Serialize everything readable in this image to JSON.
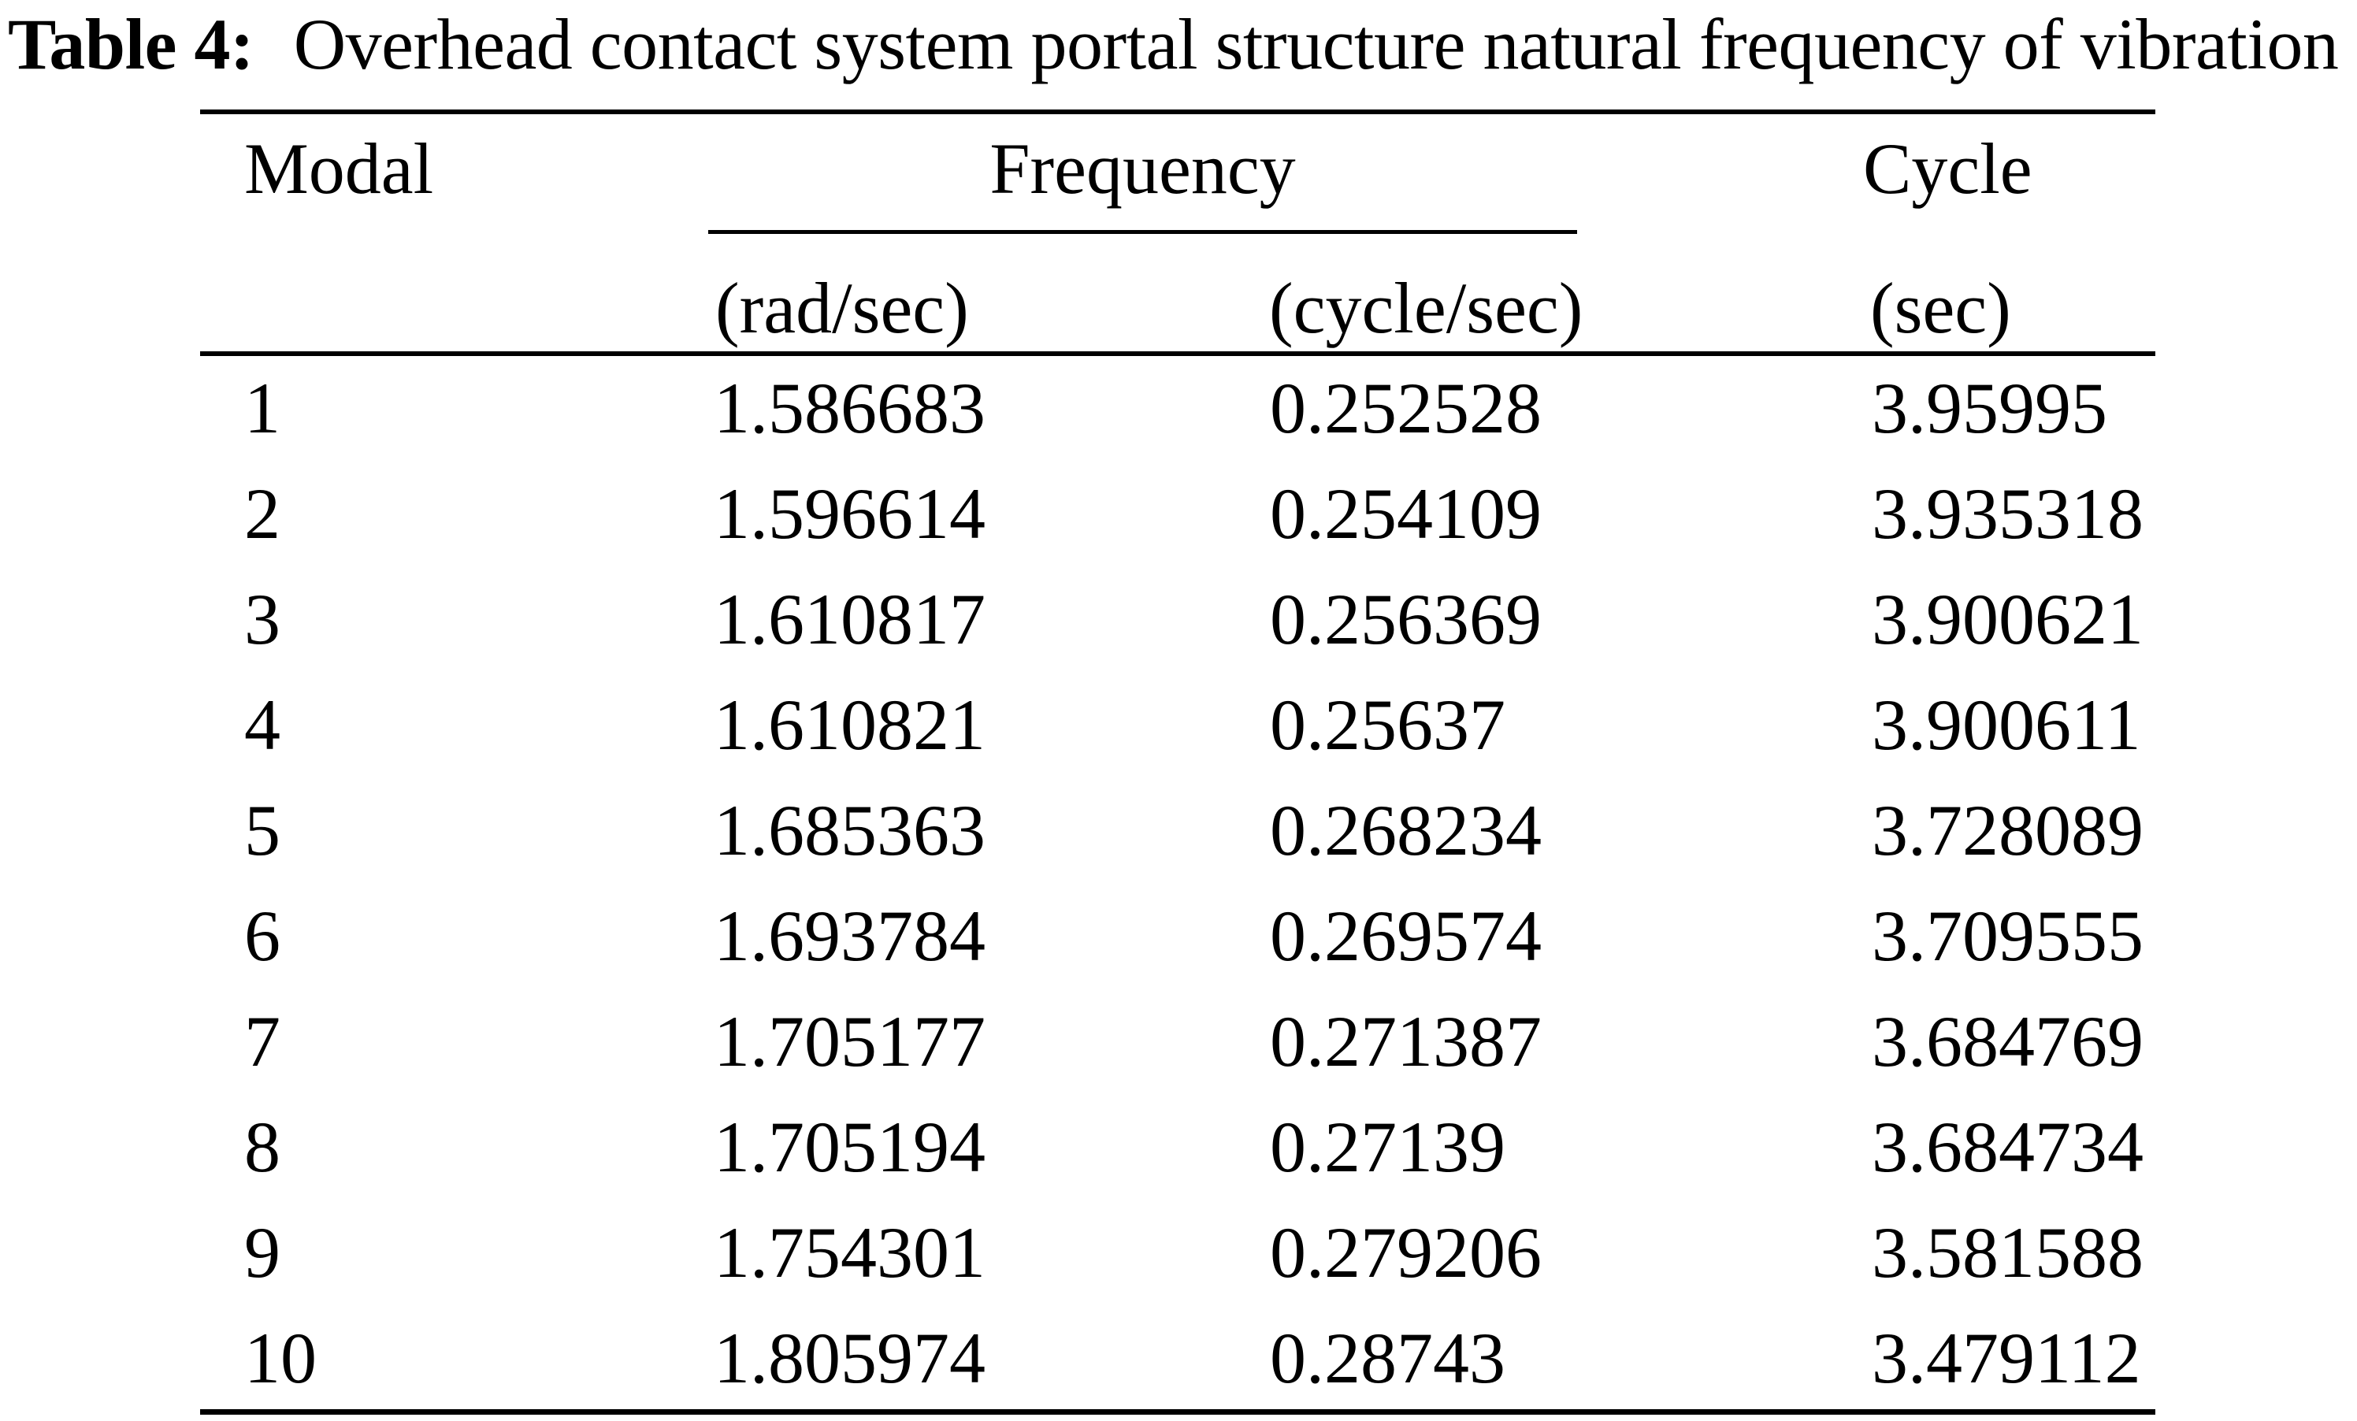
{
  "title": {
    "label": "Table 4:",
    "text": "Overhead contact system portal structure natural frequency of vibration"
  },
  "colors": {
    "background": "#ffffff",
    "text": "#000000",
    "rule": "#000000"
  },
  "table": {
    "header": {
      "modal": "Modal",
      "frequency_group": "Frequency",
      "cycle": "Cycle"
    },
    "subheader": {
      "rad": "(rad/sec)",
      "cyc": "(cycle/sec)",
      "sec": "(sec)"
    },
    "rows": [
      {
        "modal": "1",
        "rad": "1.586683",
        "cyc": "0.252528",
        "sec": "3.95995"
      },
      {
        "modal": "2",
        "rad": "1.596614",
        "cyc": "0.254109",
        "sec": "3.935318"
      },
      {
        "modal": "3",
        "rad": "1.610817",
        "cyc": "0.256369",
        "sec": "3.900621"
      },
      {
        "modal": "4",
        "rad": "1.610821",
        "cyc": "0.25637",
        "sec": "3.900611"
      },
      {
        "modal": "5",
        "rad": "1.685363",
        "cyc": "0.268234",
        "sec": "3.728089"
      },
      {
        "modal": "6",
        "rad": "1.693784",
        "cyc": "0.269574",
        "sec": "3.709555"
      },
      {
        "modal": "7",
        "rad": "1.705177",
        "cyc": "0.271387",
        "sec": "3.684769"
      },
      {
        "modal": "8",
        "rad": "1.705194",
        "cyc": "0.27139",
        "sec": "3.684734"
      },
      {
        "modal": "9",
        "rad": "1.754301",
        "cyc": "0.279206",
        "sec": "3.581588"
      },
      {
        "modal": "10",
        "rad": "1.805974",
        "cyc": "0.28743",
        "sec": "3.479112"
      }
    ]
  }
}
